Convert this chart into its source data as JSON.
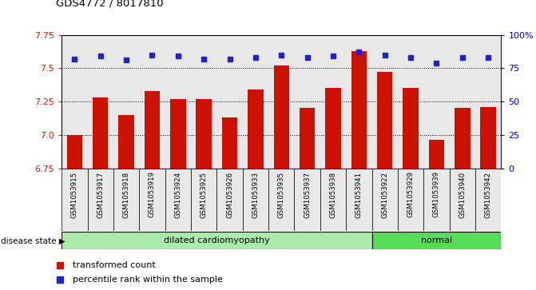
{
  "title": "GDS4772 / 8017810",
  "samples": [
    "GSM1053915",
    "GSM1053917",
    "GSM1053918",
    "GSM1053919",
    "GSM1053924",
    "GSM1053925",
    "GSM1053926",
    "GSM1053933",
    "GSM1053935",
    "GSM1053937",
    "GSM1053938",
    "GSM1053941",
    "GSM1053922",
    "GSM1053929",
    "GSM1053939",
    "GSM1053940",
    "GSM1053942"
  ],
  "bar_values": [
    7.0,
    7.28,
    7.15,
    7.33,
    7.27,
    7.27,
    7.13,
    7.34,
    7.52,
    7.2,
    7.35,
    7.63,
    7.47,
    7.35,
    6.96,
    7.2,
    7.21
  ],
  "percentile_values": [
    82,
    84,
    81,
    85,
    84,
    82,
    82,
    83,
    85,
    83,
    84,
    87,
    85,
    83,
    79,
    83,
    83
  ],
  "disease_groups": [
    {
      "label": "dilated cardiomyopathy",
      "start": 0,
      "end": 11,
      "color": "#aaeaaa"
    },
    {
      "label": "normal",
      "start": 12,
      "end": 16,
      "color": "#55dd55"
    }
  ],
  "bar_color": "#cc1100",
  "percentile_color": "#2222cc",
  "ylim_left": [
    6.75,
    7.75
  ],
  "ylim_right": [
    0,
    100
  ],
  "yticks_left": [
    6.75,
    7.0,
    7.25,
    7.5,
    7.75
  ],
  "yticks_right": [
    0,
    25,
    50,
    75,
    100
  ],
  "ytick_labels_right": [
    "0",
    "25",
    "50",
    "75",
    "100%"
  ],
  "grid_values": [
    7.0,
    7.25,
    7.5
  ],
  "left_axis_color": "#cc2200",
  "right_axis_color": "#0000cc",
  "bg_color": "#e8e8e8",
  "legend_red_label": "transformed count",
  "legend_blue_label": "percentile rank within the sample"
}
